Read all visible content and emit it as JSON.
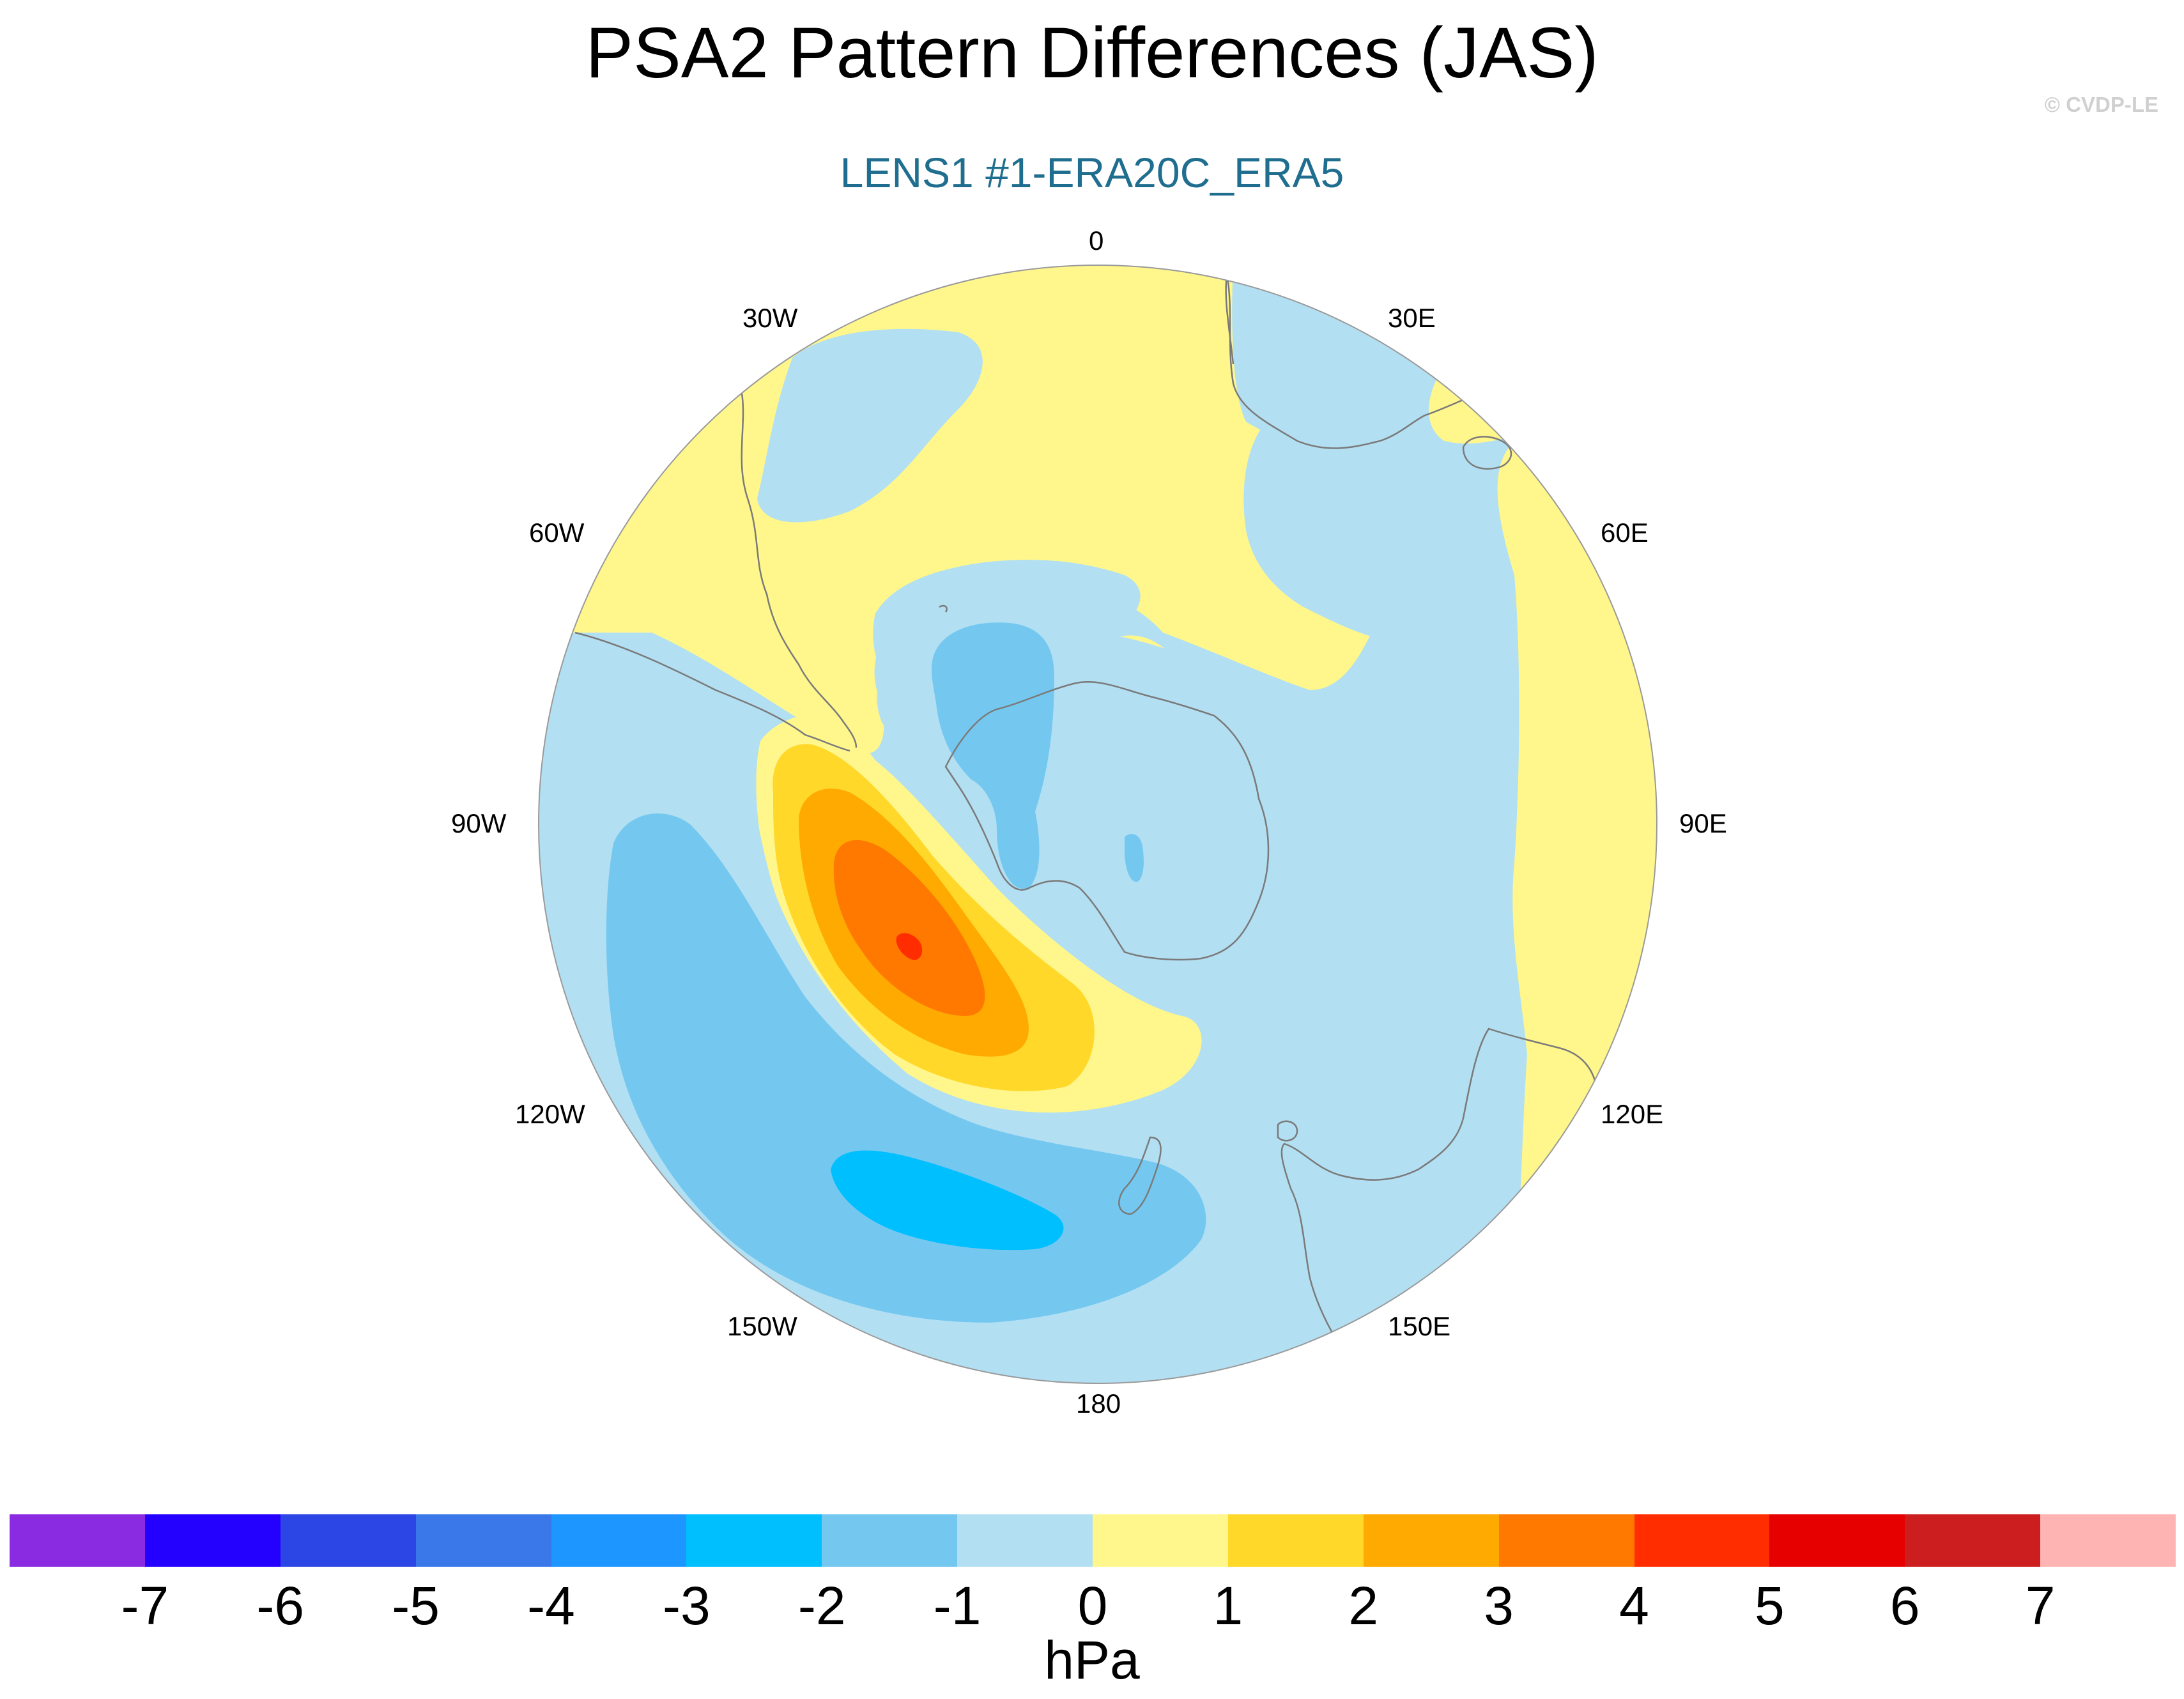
{
  "title": "PSA2 Pattern Differences (JAS)",
  "subtitle": "LENS1 #1-ERA20C_ERA5",
  "credit": "© CVDP-LE",
  "colors": {
    "subtitle": "#1f6e8f",
    "credit": "#d0d0d0",
    "coastline": "#7a7a7a"
  },
  "map": {
    "projection": "south-polar-stereographic",
    "longitude_labels": [
      "0",
      "30E",
      "60E",
      "90E",
      "120E",
      "150E",
      "180",
      "150W",
      "120W",
      "90W",
      "60W",
      "30W"
    ]
  },
  "colorbar": {
    "units": "hPa",
    "ticks": [
      "-7",
      "-6",
      "-5",
      "-4",
      "-3",
      "-2",
      "-1",
      "0",
      "1",
      "2",
      "3",
      "4",
      "5",
      "6",
      "7"
    ],
    "colors": [
      "#8a2be2",
      "#2400ff",
      "#2c46e6",
      "#3a78ea",
      "#1e96ff",
      "#00bfff",
      "#74c8f0",
      "#b3dff2",
      "#fff78c",
      "#ffd82a",
      "#ffaa00",
      "#ff7800",
      "#ff2d00",
      "#e60000",
      "#cc1e1e",
      "#ffb4b4"
    ]
  },
  "field_regions": [
    {
      "name": "south-pacific-negative-broad",
      "value_range": "-2 to -1"
    },
    {
      "name": "south-pacific-negative-core",
      "value_range": "-3 to -2"
    },
    {
      "name": "amundsen-positive-lobe",
      "value_range": "4 to 5 peak"
    },
    {
      "name": "weddell-negative",
      "value_range": "-2 to -1"
    },
    {
      "name": "south-atlantic-negative",
      "value_range": "-1 to 0"
    },
    {
      "name": "indian-ocean-positive",
      "value_range": "0 to 1"
    }
  ]
}
